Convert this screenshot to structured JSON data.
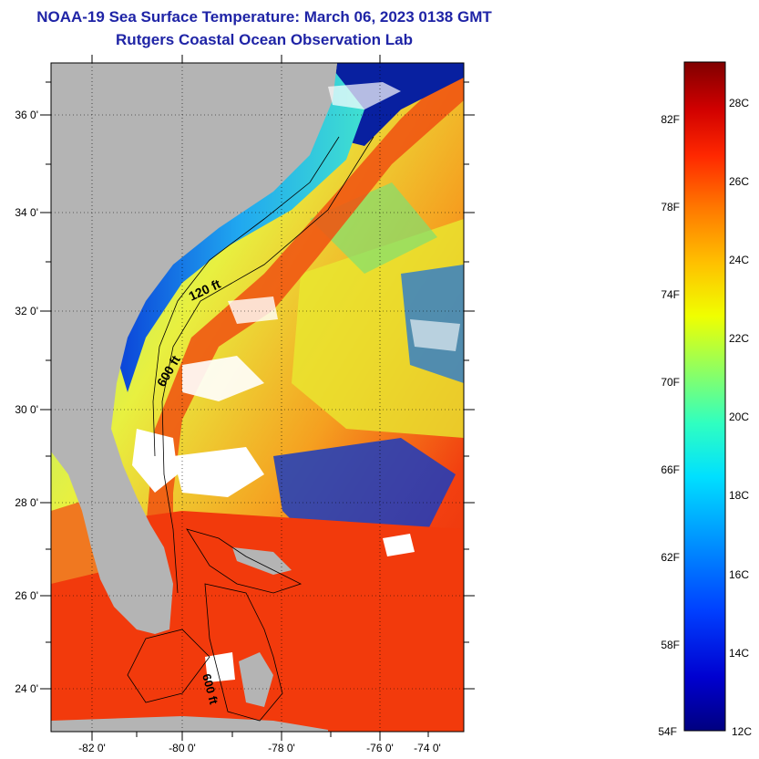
{
  "titles": {
    "line1": "NOAA-19 Sea Surface Temperature:  March 06, 2023 0138 GMT",
    "line2": "Rutgers Coastal Ocean Observation Lab"
  },
  "map": {
    "lat_labels": [
      "36 0'",
      "34 0'",
      "32 0'",
      "30 0'",
      "28 0'",
      "26 0'",
      "24 0'"
    ],
    "lon_labels": [
      "-82 0'",
      "-80 0'",
      "-78 0'",
      "-76 0'",
      "-74 0'"
    ],
    "isobath_labels": [
      "120 ft",
      "600 ft",
      "600 ft"
    ],
    "colors": {
      "land": "#b4b4b4",
      "cloud": "#ffffff",
      "warm": "#f03a0a",
      "cold": "#0a1cb4"
    }
  },
  "colorbar": {
    "fahrenheit_labels": [
      "82F",
      "78F",
      "74F",
      "70F",
      "66F",
      "62F",
      "58F",
      "54F"
    ],
    "celsius_labels": [
      "28C",
      "26C",
      "24C",
      "22C",
      "20C",
      "18C",
      "16C",
      "14C",
      "12C"
    ],
    "range_celsius": [
      12,
      29
    ],
    "colormap": [
      "#000088",
      "#0000e0",
      "#0050ff",
      "#00b0ff",
      "#00f0f0",
      "#40ffb0",
      "#a0ff50",
      "#f0ff00",
      "#ffc000",
      "#ff7000",
      "#ff2000",
      "#c00000",
      "#800000"
    ]
  }
}
